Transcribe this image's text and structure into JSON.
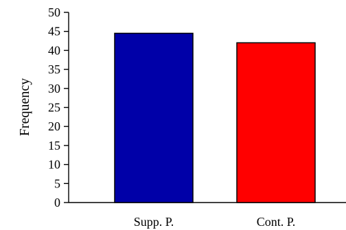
{
  "chart_data": {
    "type": "bar",
    "categories": [
      "Supp. P.",
      "Cont. P."
    ],
    "values": [
      44.5,
      42
    ],
    "colors": [
      "#0000a8",
      "#ff0000"
    ],
    "xlabel": "",
    "ylabel": "Frequency",
    "ylim": [
      0,
      50
    ],
    "yticks": [
      0,
      5,
      10,
      15,
      20,
      25,
      30,
      35,
      40,
      45,
      50
    ],
    "grid": false,
    "legend": "none"
  }
}
